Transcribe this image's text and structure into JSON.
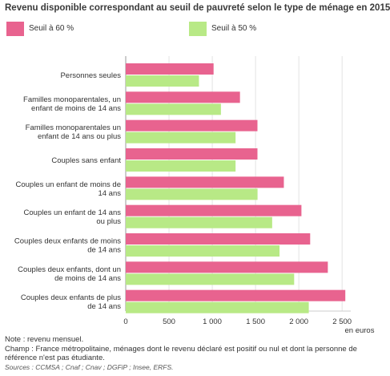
{
  "chart_data": {
    "type": "bar",
    "orientation": "horizontal",
    "title": "Revenu disponible correspondant au seuil de pauvreté selon le type de ménage en 2015",
    "categories": [
      [
        "Personnes seules"
      ],
      [
        "Familles monoparentales, un",
        "enfant de moins de 14 ans"
      ],
      [
        "Familles monoparentales un",
        "enfant de 14 ans ou plus"
      ],
      [
        "Couples sans enfant"
      ],
      [
        "Couples un enfant de moins de",
        "14 ans"
      ],
      [
        "Couples un enfant de 14 ans",
        "ou plus"
      ],
      [
        "Couples deux enfants de moins",
        "de 14 ans"
      ],
      [
        "Couples deux enfants, dont un",
        "de moins de 14 ans"
      ],
      [
        "Couples deux enfants de plus",
        "de 14 ans"
      ]
    ],
    "series": [
      {
        "name": "Seuil à 60 %",
        "color": "#e8638f",
        "values": [
          1015,
          1320,
          1522,
          1522,
          1827,
          2030,
          2131,
          2335,
          2537
        ]
      },
      {
        "name": "Seuil à 50 %",
        "color": "#b8e986",
        "values": [
          846,
          1100,
          1269,
          1269,
          1523,
          1692,
          1777,
          1946,
          2115
        ]
      }
    ],
    "xlim": [
      0,
      2600
    ],
    "xticks": [
      0,
      500,
      1000,
      1500,
      2000,
      2500
    ],
    "xtick_labels": [
      "0",
      "500",
      "1 000",
      "1 500",
      "2 000",
      "2 500"
    ],
    "xlabel": "en euros",
    "grid": true,
    "legend_position": "top"
  },
  "notes": {
    "note": "Note : revenu mensuel.",
    "champ": "Champ : France métropolitaine, ménages dont le revenu déclaré est positif ou nul et dont la personne de référence n'est pas étudiante.",
    "sources": "Sources : CCMSA ; Cnaf ; Cnav ; DGFiP ; Insee, ERFS."
  }
}
